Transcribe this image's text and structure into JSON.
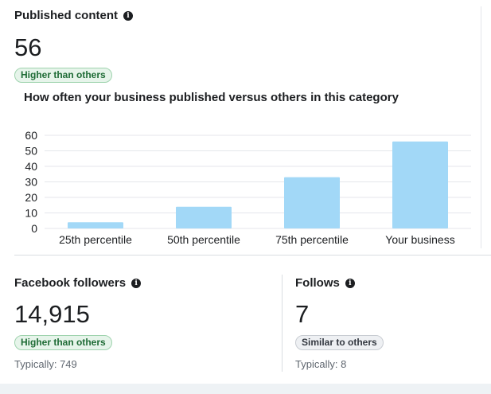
{
  "published": {
    "title": "Published content",
    "value": "56",
    "badge": "Higher than others",
    "chart_title": "How often your business published versus others in this category"
  },
  "chart_data": {
    "type": "bar",
    "categories": [
      "25th percentile",
      "50th percentile",
      "75th percentile",
      "Your business"
    ],
    "values": [
      4,
      14,
      33,
      56
    ],
    "yticks": [
      0,
      10,
      20,
      30,
      40,
      50,
      60
    ],
    "ylim": [
      0,
      60
    ],
    "bar_color": "#a2d8f7",
    "grid_color": "#e4e6eb",
    "grid": true
  },
  "followers": {
    "title": "Facebook followers",
    "value": "14,915",
    "badge": "Higher than others",
    "typical": "Typically: 749"
  },
  "follows": {
    "title": "Follows",
    "value": "7",
    "badge": "Similar to others",
    "typical": "Typically: 8"
  },
  "icons": [
    "info-icon"
  ]
}
